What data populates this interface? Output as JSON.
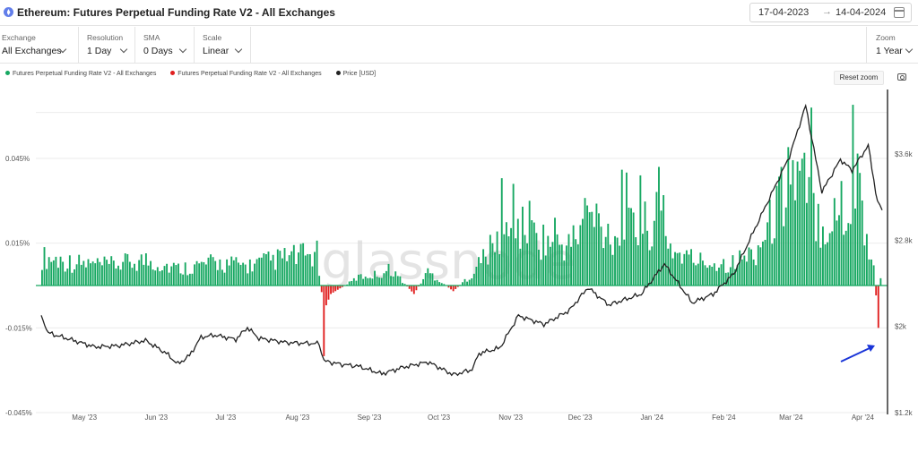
{
  "header": {
    "title": "Ethereum: Futures Perpetual Funding Rate V2 - All Exchanges",
    "date_start": "17-04-2023",
    "date_arrow": "→",
    "date_end": "14-04-2024"
  },
  "controls": {
    "exchange": {
      "label": "Exchange",
      "value": "All Exchanges"
    },
    "resolution": {
      "label": "Resolution",
      "value": "1 Day"
    },
    "sma": {
      "label": "SMA",
      "value": "0 Days"
    },
    "scale": {
      "label": "Scale",
      "value": "Linear"
    },
    "zoom": {
      "label": "Zoom",
      "value": "1 Year"
    }
  },
  "legend": {
    "positive": "Futures Perpetual Funding Rate V2 - All Exchanges",
    "negative": "Futures Perpetual Funding Rate V2 - All Exchanges",
    "price": "Price [USD]"
  },
  "reset_zoom": "Reset zoom",
  "watermark": "glassnode",
  "colors": {
    "positive": "#17a862",
    "negative": "#e02020",
    "price": "#222222",
    "annotation_arrow": "#1a35d8"
  },
  "chart_data": {
    "type": "bar",
    "x_range": [
      "2023-04-17",
      "2024-04-14"
    ],
    "x_tick_labels": [
      "May '23",
      "Jun '23",
      "Jul '23",
      "Aug '23",
      "Sep '23",
      "Oct '23",
      "Nov '23",
      "Dec '23",
      "Jan '24",
      "Feb '24",
      "Mar '24",
      "Apr '24"
    ],
    "y_left": {
      "ticks": [
        "-0.045%",
        "-0.015%",
        "0.015%",
        "0.045%"
      ],
      "range": [
        -0.045,
        0.0675
      ],
      "unit": "%"
    },
    "y_right": {
      "ticks": [
        "$1.2k",
        "$2k",
        "$2.8k",
        "$3.6k"
      ],
      "range": [
        1200,
        4150
      ],
      "unit": "USD"
    },
    "funding_rate_series": {
      "anchors": [
        [
          "2023-04-17",
          0.01
        ],
        [
          "2023-05-01",
          0.008
        ],
        [
          "2023-05-15",
          0.007
        ],
        [
          "2023-06-01",
          0.009
        ],
        [
          "2023-06-15",
          0.006
        ],
        [
          "2023-07-01",
          0.008
        ],
        [
          "2023-07-15",
          0.007
        ],
        [
          "2023-08-01",
          0.01
        ],
        [
          "2023-08-14",
          0.011
        ],
        [
          "2023-08-17",
          -0.009
        ],
        [
          "2023-08-20",
          -0.003
        ],
        [
          "2023-09-01",
          0.003
        ],
        [
          "2023-09-10",
          0.004
        ],
        [
          "2023-09-15",
          0.006
        ],
        [
          "2023-09-25",
          -0.003
        ],
        [
          "2023-10-01",
          0.005
        ],
        [
          "2023-10-12",
          -0.002
        ],
        [
          "2023-10-20",
          0.004
        ],
        [
          "2023-10-25",
          0.01
        ],
        [
          "2023-11-01",
          0.016
        ],
        [
          "2023-11-10",
          0.02
        ],
        [
          "2023-11-20",
          0.016
        ],
        [
          "2023-12-01",
          0.014
        ],
        [
          "2023-12-10",
          0.024
        ],
        [
          "2023-12-20",
          0.018
        ],
        [
          "2024-01-01",
          0.02
        ],
        [
          "2024-01-10",
          0.024
        ],
        [
          "2024-01-15",
          0.012
        ],
        [
          "2024-01-25",
          0.009
        ],
        [
          "2024-02-01",
          0.008
        ],
        [
          "2024-02-10",
          0.008
        ],
        [
          "2024-02-20",
          0.012
        ],
        [
          "2024-03-01",
          0.028
        ],
        [
          "2024-03-05",
          0.04
        ],
        [
          "2024-03-12",
          0.034
        ],
        [
          "2024-03-20",
          0.022
        ],
        [
          "2024-04-01",
          0.026
        ],
        [
          "2024-04-04",
          0.042
        ],
        [
          "2024-04-08",
          0.015
        ],
        [
          "2024-04-11",
          0.008
        ],
        [
          "2024-04-13",
          -0.015
        ],
        [
          "2024-04-14",
          0.004
        ]
      ],
      "spikes": [
        [
          "2023-08-17",
          -0.025
        ],
        [
          "2023-11-02",
          0.038
        ],
        [
          "2023-11-07",
          0.036
        ],
        [
          "2023-11-14",
          0.03
        ],
        [
          "2023-11-25",
          0.024
        ],
        [
          "2023-12-08",
          0.031
        ],
        [
          "2023-12-13",
          0.029
        ],
        [
          "2023-12-24",
          0.041
        ],
        [
          "2023-12-26",
          0.04
        ],
        [
          "2024-01-01",
          0.039
        ],
        [
          "2024-01-09",
          0.042
        ],
        [
          "2024-01-11",
          0.032
        ],
        [
          "2024-03-02",
          0.042
        ],
        [
          "2024-03-05",
          0.049
        ],
        [
          "2024-03-12",
          0.047
        ],
        [
          "2024-03-15",
          0.063
        ],
        [
          "2024-03-28",
          0.037
        ],
        [
          "2024-04-02",
          0.064
        ],
        [
          "2024-04-13",
          -0.015
        ]
      ]
    },
    "price_series": [
      [
        "2023-04-17",
        2100
      ],
      [
        "2023-04-20",
        1940
      ],
      [
        "2023-05-01",
        1870
      ],
      [
        "2023-05-10",
        1810
      ],
      [
        "2023-05-20",
        1820
      ],
      [
        "2023-06-01",
        1870
      ],
      [
        "2023-06-10",
        1750
      ],
      [
        "2023-06-15",
        1650
      ],
      [
        "2023-06-20",
        1730
      ],
      [
        "2023-06-25",
        1900
      ],
      [
        "2023-07-01",
        1920
      ],
      [
        "2023-07-10",
        1880
      ],
      [
        "2023-07-15",
        1990
      ],
      [
        "2023-07-20",
        1890
      ],
      [
        "2023-08-01",
        1850
      ],
      [
        "2023-08-15",
        1840
      ],
      [
        "2023-08-17",
        1680
      ],
      [
        "2023-08-24",
        1650
      ],
      [
        "2023-09-01",
        1630
      ],
      [
        "2023-09-11",
        1560
      ],
      [
        "2023-09-20",
        1620
      ],
      [
        "2023-10-01",
        1670
      ],
      [
        "2023-10-12",
        1550
      ],
      [
        "2023-10-20",
        1600
      ],
      [
        "2023-10-23",
        1750
      ],
      [
        "2023-11-01",
        1800
      ],
      [
        "2023-11-09",
        2100
      ],
      [
        "2023-11-20",
        2020
      ],
      [
        "2023-12-01",
        2150
      ],
      [
        "2023-12-09",
        2360
      ],
      [
        "2023-12-18",
        2200
      ],
      [
        "2024-01-01",
        2300
      ],
      [
        "2024-01-11",
        2580
      ],
      [
        "2024-01-23",
        2220
      ],
      [
        "2024-02-01",
        2300
      ],
      [
        "2024-02-10",
        2490
      ],
      [
        "2024-02-20",
        2950
      ],
      [
        "2024-03-05",
        3580
      ],
      [
        "2024-03-12",
        4050
      ],
      [
        "2024-03-19",
        3250
      ],
      [
        "2024-03-27",
        3550
      ],
      [
        "2024-04-01",
        3450
      ],
      [
        "2024-04-08",
        3680
      ],
      [
        "2024-04-12",
        3150
      ],
      [
        "2024-04-14",
        3080
      ]
    ]
  }
}
